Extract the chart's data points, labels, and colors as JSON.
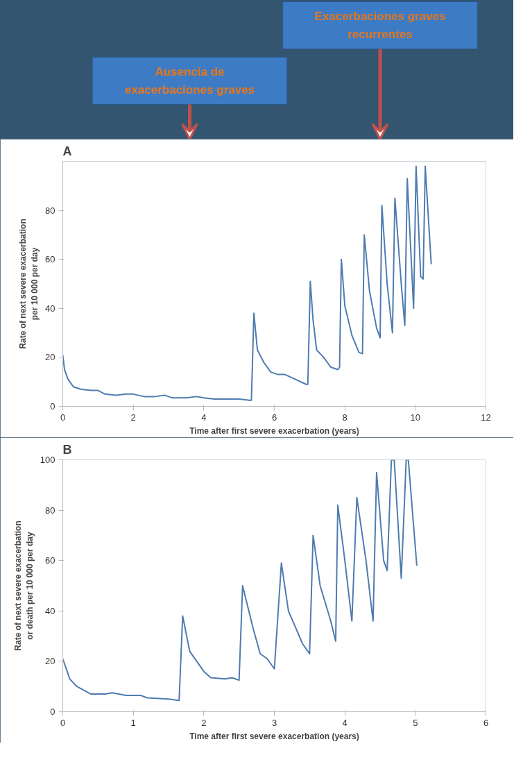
{
  "chart_data": [
    {
      "type": "line",
      "title": "A",
      "xlabel": "Time after first severe exacerbation (years)",
      "ylabel": "Rate of next severe exacerbation\nper 10 000 per day",
      "xlim": [
        0,
        12
      ],
      "xticks": [
        0,
        2,
        4,
        6,
        8,
        10,
        12
      ],
      "ylim": [
        0,
        100
      ],
      "yticks": [
        0,
        20,
        40,
        60,
        80
      ],
      "grid": false,
      "annotations": [
        "Ausencia de exacerbaciones graves",
        "Exacerbaciones graves recurrentes"
      ],
      "series": [
        {
          "color": "#4f7bb0",
          "x": [
            0,
            0.05,
            0.15,
            0.3,
            0.5,
            0.8,
            1,
            1.2,
            1.5,
            1.8,
            2,
            2.3,
            2.6,
            2.9,
            3.1,
            3.5,
            3.8,
            4,
            4.3,
            4.6,
            5,
            5.3,
            5.35,
            5.42,
            5.52,
            5.7,
            5.9,
            6.1,
            6.3,
            6.6,
            6.9,
            6.95,
            7.02,
            7.1,
            7.2,
            7.4,
            7.6,
            7.8,
            7.85,
            7.9,
            8.0,
            8.2,
            8.4,
            8.5,
            8.55,
            8.7,
            8.9,
            9.0,
            9.05,
            9.2,
            9.35,
            9.42,
            9.6,
            9.7,
            9.77,
            9.95,
            10.02,
            10.15,
            10.22,
            10.28,
            10.45
          ],
          "values": [
            21,
            15,
            11,
            8,
            7,
            6.5,
            6.5,
            5,
            4.5,
            5,
            5,
            4,
            4,
            4.5,
            3.5,
            3.5,
            4,
            3.5,
            3,
            3,
            3,
            2.5,
            2.5,
            38,
            23,
            18,
            14,
            13,
            13,
            11,
            9,
            9,
            51,
            35,
            23,
            20,
            16,
            15,
            16,
            60,
            41,
            29,
            22,
            21.5,
            70,
            47,
            32,
            28,
            82,
            50,
            30,
            85,
            50,
            33,
            93,
            40,
            98,
            53,
            52,
            98,
            58
          ]
        }
      ]
    },
    {
      "type": "line",
      "title": "B",
      "xlabel": "Time after first severe exacerbation (years)",
      "ylabel": "Rate of next severe exacerbation\nor death per 10 000 per day",
      "xlim": [
        0,
        6
      ],
      "xticks": [
        0,
        1,
        2,
        3,
        4,
        5,
        6
      ],
      "ylim": [
        0,
        100
      ],
      "yticks": [
        0,
        20,
        40,
        60,
        80,
        100
      ],
      "grid": false,
      "series": [
        {
          "color": "#4f7bb0",
          "x": [
            0,
            0.1,
            0.2,
            0.4,
            0.6,
            0.7,
            0.9,
            1.1,
            1.2,
            1.5,
            1.65,
            1.7,
            1.8,
            2.0,
            2.1,
            2.3,
            2.4,
            2.5,
            2.55,
            2.7,
            2.8,
            2.9,
            3.0,
            3.1,
            3.2,
            3.4,
            3.5,
            3.55,
            3.65,
            3.8,
            3.87,
            3.9,
            4.0,
            4.1,
            4.17,
            4.3,
            4.4,
            4.45,
            4.55,
            4.6,
            4.66,
            4.7,
            4.8,
            4.87,
            4.9,
            5.02
          ],
          "values": [
            21,
            13,
            10,
            7,
            7,
            7.5,
            6.5,
            6.5,
            5.5,
            5,
            4.5,
            38,
            24,
            16,
            13.5,
            13,
            13.5,
            12.5,
            50,
            33,
            23,
            21,
            17,
            59,
            40,
            27,
            23,
            70,
            50,
            36,
            28,
            82,
            60,
            36,
            85,
            60,
            36,
            95,
            60,
            56,
            100,
            100,
            53,
            100,
            100,
            58
          ]
        }
      ]
    }
  ]
}
